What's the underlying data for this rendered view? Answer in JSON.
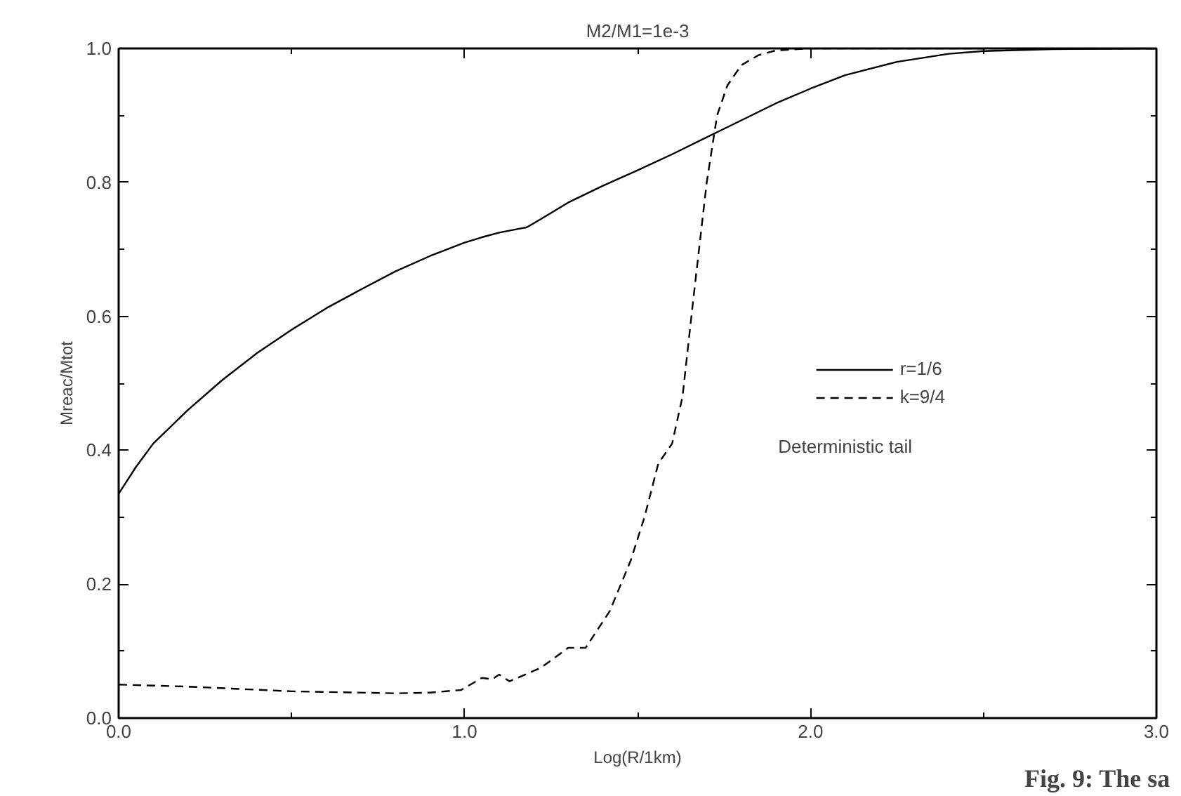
{
  "chart_data": {
    "type": "line",
    "title": "M2/M1=1e-3",
    "xlabel": "Log(R/1km)",
    "ylabel": "Mreac/Mtot",
    "xlim": [
      0,
      3
    ],
    "ylim": [
      0,
      1
    ],
    "xticks": [
      {
        "value": 0,
        "label": "0.0"
      },
      {
        "value": 1,
        "label": "1.0"
      },
      {
        "value": 2,
        "label": "2.0"
      },
      {
        "value": 3,
        "label": "3.0"
      }
    ],
    "yticks": [
      {
        "value": 0,
        "label": "0.0"
      },
      {
        "value": 0.2,
        "label": "0.2"
      },
      {
        "value": 0.4,
        "label": "0.4"
      },
      {
        "value": 0.6,
        "label": "0.6"
      },
      {
        "value": 0.8,
        "label": "0.8"
      },
      {
        "value": 1,
        "label": "1.0"
      }
    ],
    "grid": false,
    "legend": "right",
    "marker": "none",
    "series": [
      {
        "name": "r=1/6",
        "color": "#000000",
        "line_style": "solid",
        "x": [
          0,
          0.05,
          0.1,
          0.2,
          0.3,
          0.4,
          0.5,
          0.6,
          0.7,
          0.8,
          0.9,
          1.0,
          1.05,
          1.1,
          1.15,
          1.18,
          1.22,
          1.3,
          1.4,
          1.5,
          1.6,
          1.75,
          1.9,
          2.0,
          2.1,
          2.25,
          2.4,
          2.5,
          2.7,
          3.0
        ],
        "values": [
          0.335,
          0.375,
          0.41,
          0.46,
          0.505,
          0.545,
          0.58,
          0.612,
          0.64,
          0.667,
          0.69,
          0.71,
          0.718,
          0.725,
          0.73,
          0.733,
          0.745,
          0.77,
          0.795,
          0.818,
          0.842,
          0.88,
          0.918,
          0.94,
          0.96,
          0.98,
          0.992,
          0.996,
          0.999,
          1.0
        ]
      },
      {
        "name": "k=9/4",
        "color": "#000000",
        "line_style": "dashed",
        "x": [
          0,
          0.2,
          0.5,
          0.8,
          0.9,
          0.99,
          1.05,
          1.08,
          1.1,
          1.13,
          1.22,
          1.3,
          1.35,
          1.42,
          1.48,
          1.52,
          1.56,
          1.6,
          1.63,
          1.66,
          1.7,
          1.73,
          1.76,
          1.8,
          1.85,
          1.9,
          2.0,
          2.5,
          3.0
        ],
        "values": [
          0.05,
          0.047,
          0.04,
          0.037,
          0.038,
          0.042,
          0.06,
          0.058,
          0.065,
          0.055,
          0.075,
          0.105,
          0.105,
          0.16,
          0.235,
          0.3,
          0.38,
          0.41,
          0.48,
          0.62,
          0.8,
          0.9,
          0.945,
          0.975,
          0.99,
          0.997,
          1.0,
          1.0,
          1.0
        ]
      }
    ],
    "annotations": [
      "Deterministic tail",
      "Fig. 9: The sa"
    ]
  }
}
